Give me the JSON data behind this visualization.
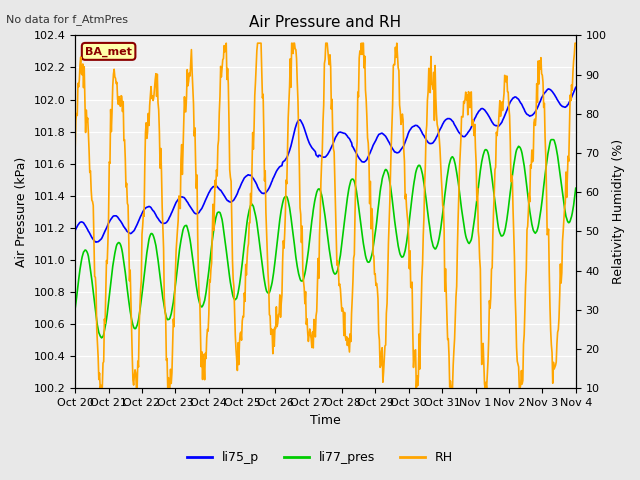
{
  "title": "Air Pressure and RH",
  "top_left_text": "No data for f_AtmPres",
  "box_label": "BA_met",
  "xlabel": "Time",
  "ylabel_left": "Air Pressure (kPa)",
  "ylabel_right": "Relativity Humidity (%)",
  "ylim_left": [
    100.2,
    102.4
  ],
  "ylim_right": [
    10,
    100
  ],
  "yticks_left": [
    100.2,
    100.4,
    100.6,
    100.8,
    101.0,
    101.2,
    101.4,
    101.6,
    101.8,
    102.0,
    102.2,
    102.4
  ],
  "yticks_right": [
    10,
    20,
    30,
    40,
    50,
    60,
    70,
    80,
    90,
    100
  ],
  "xtick_labels": [
    "Oct 20",
    "Oct 21",
    "Oct 22",
    "Oct 23",
    "Oct 24",
    "Oct 25",
    "Oct 26",
    "Oct 27",
    "Oct 28",
    "Oct 29",
    "Oct 30",
    "Oct 31",
    "Nov 1",
    "Nov 2",
    "Nov 3",
    "Nov 4"
  ],
  "xtick_positions": [
    0,
    1,
    2,
    3,
    4,
    5,
    6,
    7,
    8,
    9,
    10,
    11,
    12,
    13,
    14,
    15
  ],
  "legend_labels": [
    "li75_p",
    "li77_pres",
    "RH"
  ],
  "line_colors": [
    "blue",
    "#00cc00",
    "orange"
  ],
  "background_color": "#e8e8e8",
  "plot_bg_color": "#f0f0f0",
  "grid_color": "white",
  "n_days": 15,
  "n_points": 720
}
